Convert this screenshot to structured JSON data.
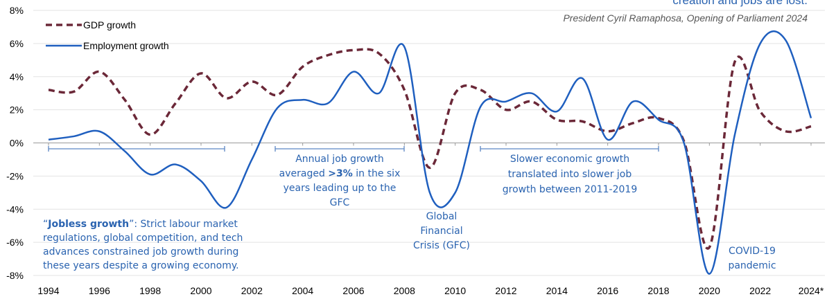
{
  "chart_data": {
    "type": "line",
    "quote": "creation and jobs are lost.",
    "attribution": "President Cyril Ramaphosa, Opening of Parliament 2024",
    "x": [
      1994,
      1995,
      1996,
      1997,
      1998,
      1999,
      2000,
      2001,
      2002,
      2003,
      2004,
      2005,
      2006,
      2007,
      2008,
      2009,
      2010,
      2011,
      2012,
      2013,
      2014,
      2015,
      2016,
      2017,
      2018,
      2019,
      2020,
      2021,
      2022,
      2023,
      2024
    ],
    "series": [
      {
        "name": "GDP growth",
        "color": "#6b2838",
        "dashed": true,
        "values": [
          3.2,
          3.1,
          4.3,
          2.6,
          0.5,
          2.4,
          4.2,
          2.7,
          3.7,
          2.9,
          4.6,
          5.3,
          5.6,
          5.4,
          3.2,
          -1.5,
          3.0,
          3.2,
          2.0,
          2.5,
          1.4,
          1.3,
          0.7,
          1.2,
          1.5,
          0.1,
          -6.3,
          4.9,
          1.9,
          0.7,
          1.0
        ]
      },
      {
        "name": "Employment growth",
        "color": "#1f5fbf",
        "dashed": false,
        "values": [
          0.2,
          0.4,
          0.7,
          -0.5,
          -1.9,
          -1.3,
          -2.3,
          -3.9,
          -1.0,
          2.1,
          2.6,
          2.4,
          4.3,
          3.0,
          5.8,
          -3.0,
          -3.0,
          2.2,
          2.5,
          3.0,
          1.9,
          3.9,
          0.2,
          2.5,
          1.4,
          0.0,
          -7.9,
          0.5,
          6.0,
          6.2,
          1.5
        ]
      }
    ],
    "xlim": [
      1994,
      2024
    ],
    "xticks": [
      1994,
      1996,
      1998,
      2000,
      2002,
      2004,
      2006,
      2008,
      2010,
      2012,
      2014,
      2016,
      2018,
      2020,
      2022,
      {
        "value": 2024,
        "label": "2024*"
      }
    ],
    "ylim": [
      -8,
      8
    ],
    "yticks": [
      {
        "value": -8,
        "label": "-8%"
      },
      {
        "value": -6,
        "label": "-6%"
      },
      {
        "value": -4,
        "label": "-4%"
      },
      {
        "value": -2,
        "label": "-2%"
      },
      {
        "value": 0,
        "label": "0%"
      },
      {
        "value": 2,
        "label": "2%"
      },
      {
        "value": 4,
        "label": "4%"
      },
      {
        "value": 6,
        "label": "6%"
      },
      {
        "value": 8,
        "label": "8%"
      }
    ],
    "grid": true,
    "legend": "upper left",
    "annotations": [
      {
        "lines": [
          [
            "“",
            "Jobless growth",
            "”: Strict labour market"
          ],
          [
            "regulations, global competition, and tech"
          ],
          [
            "advances constrained job growth during"
          ],
          [
            "these years despite a growing economy."
          ]
        ]
      },
      {
        "lines": [
          [
            "Annual job growth"
          ],
          [
            "averaged ",
            ">3%",
            " in the six"
          ],
          [
            "years leading up to the"
          ],
          [
            "GFC"
          ]
        ]
      },
      {
        "lines": [
          [
            "Global"
          ],
          [
            "Financial"
          ],
          [
            "Crisis (GFC)"
          ]
        ]
      },
      {
        "lines": [
          [
            "Slower economic growth"
          ],
          [
            "translated into slower job"
          ],
          [
            "growth between 2011-2019"
          ]
        ]
      },
      {
        "lines": [
          [
            "COVID-19"
          ],
          [
            "pandemic"
          ]
        ]
      }
    ]
  }
}
